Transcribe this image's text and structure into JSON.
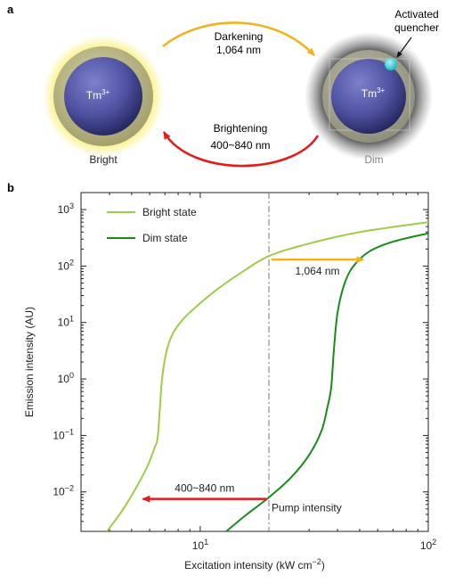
{
  "panel_a": {
    "label": "a",
    "bright_particle": {
      "core_label": "Tm",
      "core_sup": "3+",
      "caption": "Bright"
    },
    "dim_particle": {
      "core_label": "Tm",
      "core_sup": "3+",
      "caption": "Dim"
    },
    "quencher_label_line1": "Activated",
    "quencher_label_line2": "quencher",
    "darkening_line1": "Darkening",
    "darkening_line2": "1,064 nm",
    "brightening_line1": "Brightening",
    "brightening_line2": "400~840 nm",
    "colors": {
      "darkening_arrow": "#f2b21c",
      "brightening_arrow": "#e31b1b",
      "glow": "#f7e83a",
      "core": "#5c5fb0",
      "quencher": "#39d3d8"
    }
  },
  "panel_b": {
    "label": "b"
  },
  "chart_data": {
    "type": "line",
    "xlabel": "Excitation intensity (kW cm",
    "xlabel_sup": "−2",
    "xlabel_end": ")",
    "ylabel": "Emission intensity (AU)",
    "xscale": "log",
    "yscale": "log",
    "xlim": [
      3,
      100
    ],
    "ylim": [
      0.002,
      2000
    ],
    "x_ticks": [
      {
        "value": 10,
        "base": "10",
        "exp": "1"
      },
      {
        "value": 100,
        "base": "10",
        "exp": "2"
      }
    ],
    "y_ticks": [
      {
        "value": 1000,
        "base": "10",
        "exp": "3"
      },
      {
        "value": 100,
        "base": "10",
        "exp": "2"
      },
      {
        "value": 10,
        "base": "10",
        "exp": "1"
      },
      {
        "value": 1,
        "base": "10",
        "exp": "0"
      },
      {
        "value": 0.1,
        "base": "10",
        "exp": "−1"
      },
      {
        "value": 0.01,
        "base": "10",
        "exp": "−2"
      }
    ],
    "legend_position": "top-left",
    "series": [
      {
        "name": "Bright state",
        "color": "#9ccd4a",
        "x": [
          3.9,
          4.6,
          5.3,
          5.9,
          6.3,
          6.5,
          6.65,
          6.8,
          7.1,
          7.6,
          8.5,
          10,
          12,
          15,
          20,
          30,
          50,
          100
        ],
        "y": [
          0.002,
          0.005,
          0.013,
          0.03,
          0.06,
          0.09,
          0.3,
          1.0,
          3.0,
          6.5,
          12,
          22,
          40,
          75,
          150,
          250,
          400,
          600
        ]
      },
      {
        "name": "Dim state",
        "color": "#1a8a1a",
        "x": [
          13,
          16,
          20,
          25,
          30,
          34,
          36,
          37.5,
          38.5,
          40,
          43,
          47,
          55,
          70,
          100
        ],
        "y": [
          0.002,
          0.004,
          0.008,
          0.018,
          0.045,
          0.12,
          0.3,
          0.7,
          3.0,
          15,
          50,
          100,
          180,
          270,
          380
        ]
      }
    ],
    "pump_line": {
      "x": 20,
      "label": "Pump intensity"
    },
    "annotations": [
      {
        "text": "1,064 nm",
        "from_x": 20.5,
        "to_x": 52,
        "y": 130,
        "color": "#f2b21c"
      },
      {
        "text": "400~840 nm",
        "from_x": 19.5,
        "to_x": 5.6,
        "y": 0.0075,
        "color": "#e31b1b"
      }
    ]
  }
}
